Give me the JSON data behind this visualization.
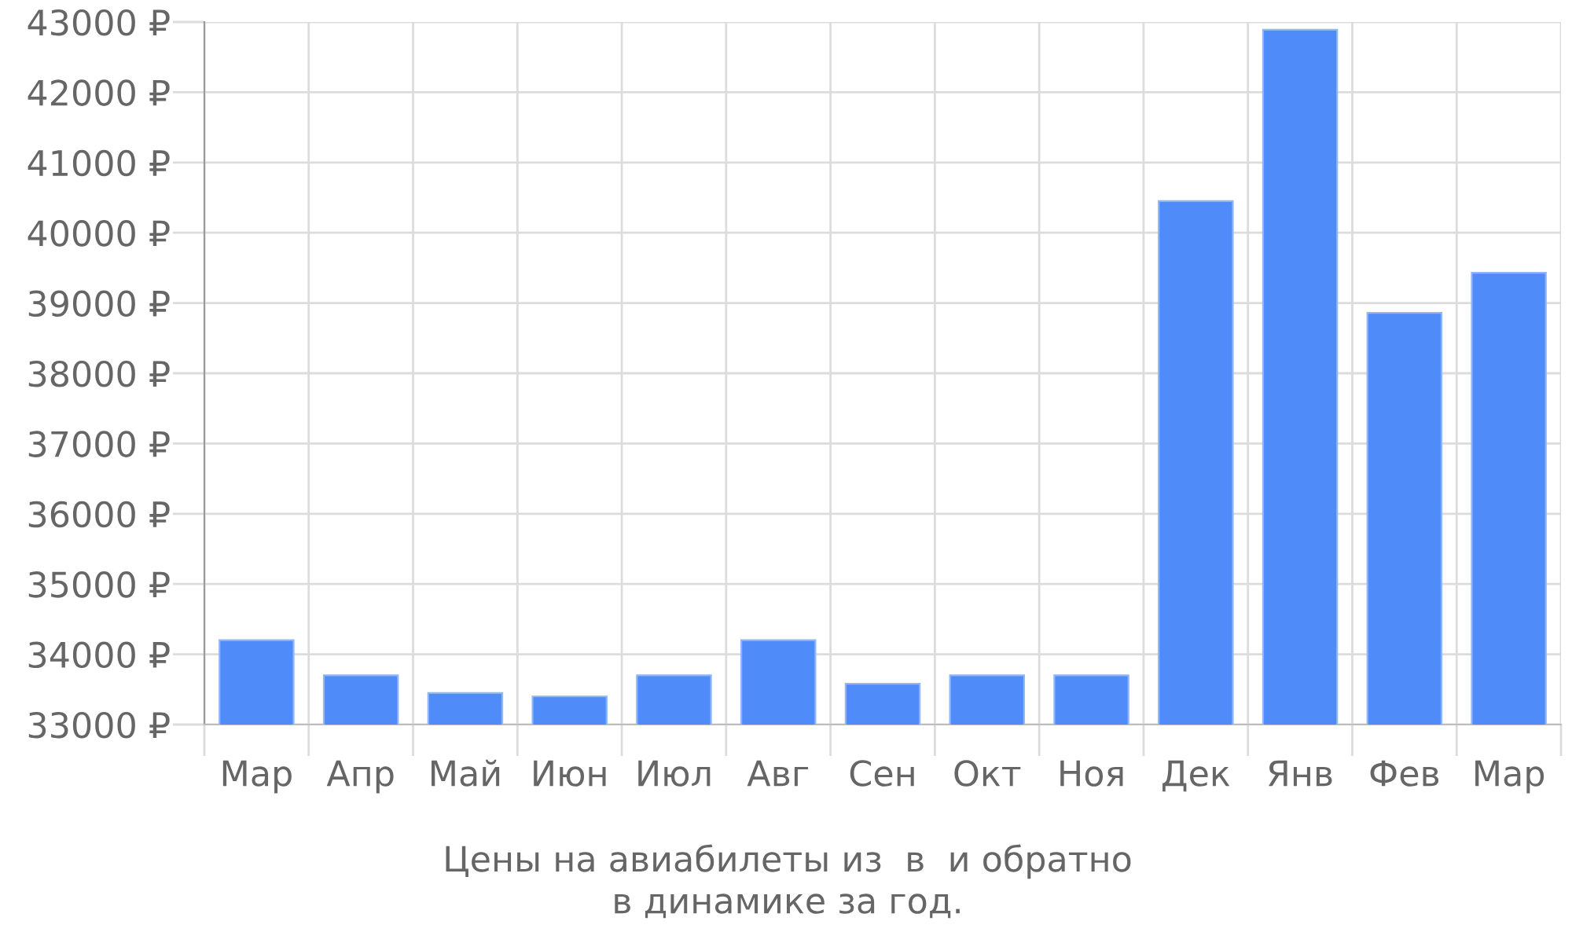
{
  "chart_data": {
    "type": "bar",
    "title": "Цены на авиабилеты из  в  и обратно\nв динамике за год.",
    "categories": [
      "Мар",
      "Апр",
      "Май",
      "Июн",
      "Июл",
      "Авг",
      "Сен",
      "Окт",
      "Ноя",
      "Дек",
      "Янв",
      "Фев",
      "Мар"
    ],
    "values": [
      34200,
      33700,
      33450,
      33400,
      33700,
      34200,
      33580,
      33700,
      33700,
      40450,
      42890,
      38860,
      39430
    ],
    "color": "#4f8bf9",
    "ylim": [
      33000,
      43000
    ],
    "yticks": [
      {
        "value": 33000,
        "label": "33000 ₽"
      },
      {
        "value": 34000,
        "label": "34000 ₽"
      },
      {
        "value": 35000,
        "label": "35000 ₽"
      },
      {
        "value": 36000,
        "label": "36000 ₽"
      },
      {
        "value": 37000,
        "label": "37000 ₽"
      },
      {
        "value": 38000,
        "label": "38000 ₽"
      },
      {
        "value": 39000,
        "label": "39000 ₽"
      },
      {
        "value": 40000,
        "label": "40000 ₽"
      },
      {
        "value": 41000,
        "label": "41000 ₽"
      },
      {
        "value": 42000,
        "label": "42000 ₽"
      },
      {
        "value": 43000,
        "label": "43000 ₽"
      }
    ],
    "grid": true
  }
}
